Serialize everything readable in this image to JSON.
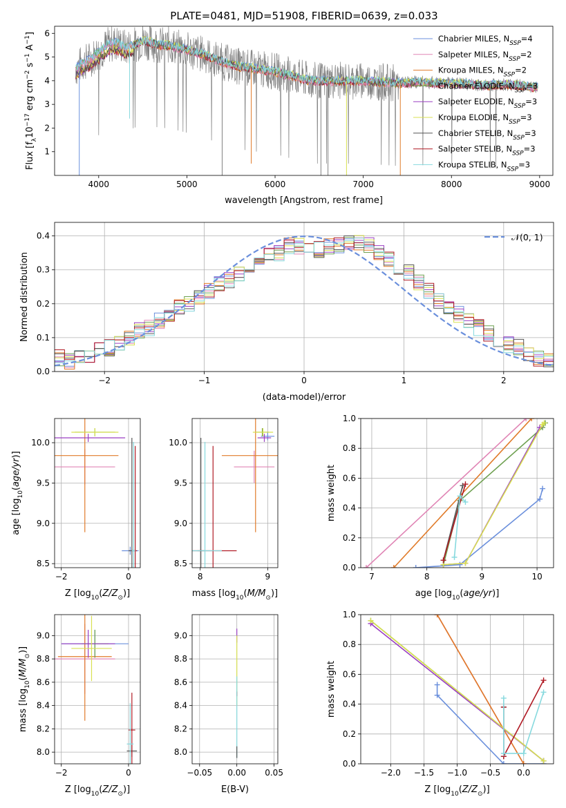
{
  "colors": {
    "c0": "#6a8fdc",
    "c1": "#e085b5",
    "c2": "#e07a28",
    "c3": "#6ea050",
    "c4": "#9a3fc2",
    "c5": "#d8e050",
    "c6": "#555555",
    "c7": "#b01a24",
    "c8": "#86d9de",
    "gray": "#808080",
    "dash": "#6a8fdc"
  },
  "chart_data": [
    {
      "id": "spectrum",
      "type": "line",
      "title": "PLATE=0481, MJD=51908, FIBERID=0639, z=0.033",
      "xlabel": "wavelength [Angstrom, rest frame]",
      "ylabel": "Flux [f_λ10^-17 erg cm^-2 s^-1 A^-1]",
      "xlim": [
        3500,
        9150
      ],
      "ylim": [
        0,
        6.3
      ],
      "xticks": [
        4000,
        5000,
        6000,
        7000,
        8000,
        9000
      ],
      "yticks": [
        1,
        2,
        3,
        4,
        5,
        6
      ],
      "grid": false,
      "legend": "upper-right",
      "series": [
        {
          "name": "Chabrier MILES, N_SSP=4",
          "color": "c0"
        },
        {
          "name": "Salpeter MILES, N_SSP=2",
          "color": "c1"
        },
        {
          "name": "Kroupa MILES, N_SSP=2",
          "color": "c2"
        },
        {
          "name": "Chabrier ELODIE, N_SSP=3",
          "color": "c3"
        },
        {
          "name": "Salpeter ELODIE, N_SSP=3",
          "color": "c4"
        },
        {
          "name": "Kroupa ELODIE, N_SSP=3",
          "color": "c5"
        },
        {
          "name": "Chabrier STELIB, N_SSP=3",
          "color": "c6"
        },
        {
          "name": "Salpeter STELIB, N_SSP=3",
          "color": "c7"
        },
        {
          "name": "Kroupa STELIB, N_SSP=3",
          "color": "c8"
        }
      ],
      "model_continuum": {
        "x": [
          3740,
          3800,
          3900,
          4000,
          4100,
          4200,
          4300,
          4400,
          4500,
          4600,
          4700,
          4800,
          4900,
          5000,
          5200,
          5400,
          5600,
          5800,
          6000,
          6200,
          6400,
          6600,
          6800,
          7000,
          7200,
          7400,
          7600,
          7800,
          8000,
          8200,
          8400,
          8600,
          8800,
          9000
        ],
        "y": [
          4.5,
          4.7,
          4.9,
          5.2,
          5.5,
          5.6,
          5.4,
          5.5,
          5.7,
          5.6,
          5.5,
          5.5,
          5.4,
          5.3,
          5.1,
          4.8,
          4.6,
          4.5,
          4.4,
          4.2,
          4.0,
          4.0,
          4.0,
          4.0,
          3.95,
          3.9,
          3.95,
          3.9,
          3.9,
          3.85,
          3.8,
          3.85,
          3.8,
          3.7
        ]
      }
    },
    {
      "id": "residuals",
      "type": "bar",
      "xlabel": "(data-model)/error",
      "ylabel": "Normed distribution",
      "xlim": [
        -2.5,
        2.5
      ],
      "ylim": [
        0,
        0.44
      ],
      "xticks": [
        -2,
        -1,
        0,
        1,
        2
      ],
      "yticks": [
        0.0,
        0.1,
        0.2,
        0.3,
        0.4
      ],
      "grid": true,
      "legend": "upper-right",
      "normal_label": "𝒩(0, 1)",
      "bin_edges_start": -2.5,
      "bin_width": 0.1,
      "hist_base": [
        0.04,
        0.03,
        0.04,
        0.05,
        0.06,
        0.07,
        0.08,
        0.1,
        0.12,
        0.13,
        0.15,
        0.17,
        0.19,
        0.2,
        0.22,
        0.24,
        0.26,
        0.27,
        0.29,
        0.31,
        0.33,
        0.34,
        0.35,
        0.37,
        0.37,
        0.36,
        0.36,
        0.37,
        0.37,
        0.38,
        0.38,
        0.37,
        0.35,
        0.33,
        0.31,
        0.29,
        0.26,
        0.24,
        0.21,
        0.19,
        0.17,
        0.15,
        0.13,
        0.11,
        0.09,
        0.08,
        0.07,
        0.05,
        0.04,
        0.03
      ]
    },
    {
      "id": "age-vs-Z",
      "type": "scatter",
      "xlabel": "Z [log10(Z/Z⊙)]",
      "ylabel": "age  [log10(age/yr)]",
      "xlim": [
        -2.2,
        0.35
      ],
      "ylim": [
        8.45,
        10.3
      ],
      "xticks": [
        -2,
        0
      ],
      "yticks": [
        8.5,
        9.0,
        9.5,
        10.0
      ],
      "grid": true,
      "points": [
        {
          "c": "c0",
          "x": 0.05,
          "y": 8.66,
          "xe": 0.25,
          "ye": 0.05
        },
        {
          "c": "c1",
          "x": -1.3,
          "y": 9.7,
          "xe": 0.9,
          "ye": 0.22
        },
        {
          "c": "c2",
          "x": -1.3,
          "y": 9.84,
          "xe": 1.0,
          "ye": 0.95
        },
        {
          "c": "c3",
          "x": -1.0,
          "y": 10.13,
          "xe": 0.6,
          "ye": 0.05
        },
        {
          "c": "c4",
          "x": -1.2,
          "y": 10.06,
          "xe": 1.1,
          "ye": 0.05
        },
        {
          "c": "c5",
          "x": -1.0,
          "y": 10.13,
          "xe": 0.7,
          "ye": 0.05
        },
        {
          "c": "c6",
          "x": 0.1,
          "y": 8.66,
          "xe": 0.1,
          "ye": 1.4
        },
        {
          "c": "c7",
          "x": 0.2,
          "y": 8.66,
          "xe": 0.05,
          "ye": 1.3
        },
        {
          "c": "c8",
          "x": 0.15,
          "y": 8.66,
          "xe": 0.05,
          "ye": 1.35
        }
      ]
    },
    {
      "id": "age-vs-mass",
      "type": "scatter",
      "xlabel": "mass [log10(M/M⊙)]",
      "ylabel": "",
      "xlim": [
        7.88,
        9.15
      ],
      "ylim": [
        8.45,
        10.3
      ],
      "xticks": [
        8,
        9
      ],
      "yticks": [
        8.5,
        9.0,
        9.5,
        10.0
      ],
      "grid": true,
      "points": [
        {
          "c": "c0",
          "x": 9.0,
          "y": 10.08,
          "xe": 0.1,
          "ye": 0.05
        },
        {
          "c": "c1",
          "x": 8.8,
          "y": 9.7,
          "xe": 0.3,
          "ye": 0.2
        },
        {
          "c": "c2",
          "x": 8.82,
          "y": 9.84,
          "xe": 0.5,
          "ye": 0.95
        },
        {
          "c": "c3",
          "x": 8.92,
          "y": 10.13,
          "xe": 0.1,
          "ye": 0.05
        },
        {
          "c": "c4",
          "x": 8.95,
          "y": 10.06,
          "xe": 0.1,
          "ye": 0.05
        },
        {
          "c": "c5",
          "x": 8.93,
          "y": 10.13,
          "xe": 0.15,
          "ye": 0.05
        },
        {
          "c": "c6",
          "x": 8.01,
          "y": 8.66,
          "xe": 0.05,
          "ye": 1.4
        },
        {
          "c": "c7",
          "x": 8.19,
          "y": 8.66,
          "xe": 0.35,
          "ye": 1.3
        },
        {
          "c": "c8",
          "x": 8.07,
          "y": 8.66,
          "xe": 0.25,
          "ye": 1.35
        }
      ]
    },
    {
      "id": "weight-vs-age",
      "type": "line",
      "xlabel": "age  [log10(age/yr)]",
      "ylabel": "mass weight",
      "xlim": [
        6.8,
        10.3
      ],
      "ylim": [
        0,
        1.0
      ],
      "xticks": [
        7,
        8,
        9,
        10
      ],
      "yticks": [
        0.0,
        0.2,
        0.4,
        0.6,
        0.8,
        1.0
      ],
      "grid": true,
      "series": [
        {
          "c": "c0",
          "x": [
            7.8,
            8.6,
            10.05,
            10.1
          ],
          "y": [
            0.0,
            0.02,
            0.46,
            0.53
          ]
        },
        {
          "c": "c1",
          "x": [
            6.9,
            9.8
          ],
          "y": [
            0.0,
            1.0
          ]
        },
        {
          "c": "c2",
          "x": [
            7.4,
            9.9
          ],
          "y": [
            0.0,
            1.0
          ]
        },
        {
          "c": "c3",
          "x": [
            8.3,
            8.6,
            10.1,
            10.15
          ],
          "y": [
            0.02,
            0.45,
            0.94,
            0.97
          ]
        },
        {
          "c": "c4",
          "x": [
            8.3,
            8.7,
            10.05
          ],
          "y": [
            0.02,
            0.03,
            0.94
          ]
        },
        {
          "c": "c5",
          "x": [
            8.3,
            8.7,
            10.1,
            10.13
          ],
          "y": [
            0.02,
            0.03,
            0.96,
            0.97
          ]
        },
        {
          "c": "c6",
          "x": [
            8.3,
            8.65
          ],
          "y": [
            0.05,
            0.55
          ]
        },
        {
          "c": "c7",
          "x": [
            8.3,
            8.7
          ],
          "y": [
            0.05,
            0.56
          ]
        },
        {
          "c": "c8",
          "x": [
            8.5,
            8.6,
            8.7
          ],
          "y": [
            0.07,
            0.48,
            0.44
          ]
        }
      ]
    },
    {
      "id": "mass-vs-Z",
      "type": "scatter",
      "xlabel": "Z [log10(Z/Z⊙)]",
      "ylabel": "mass [log10(M/M⊙)]",
      "xlim": [
        -2.2,
        0.35
      ],
      "ylim": [
        7.9,
        9.18
      ],
      "xticks": [
        -2,
        0
      ],
      "yticks": [
        8.0,
        8.2,
        8.4,
        8.6,
        8.8,
        9.0
      ],
      "grid": true,
      "points": [
        {
          "c": "c0",
          "x": -1.0,
          "y": 8.93,
          "xe": 1.0,
          "ye": 0.12
        },
        {
          "c": "c1",
          "x": -1.3,
          "y": 8.8,
          "xe": 0.9,
          "ye": 0.3
        },
        {
          "c": "c2",
          "x": -1.3,
          "y": 8.82,
          "xe": 0.8,
          "ye": 0.55
        },
        {
          "c": "c3",
          "x": -1.0,
          "y": 8.93,
          "xe": 0.4,
          "ye": 0.12
        },
        {
          "c": "c4",
          "x": -1.2,
          "y": 8.93,
          "xe": 0.8,
          "ye": 0.12
        },
        {
          "c": "c5",
          "x": -1.1,
          "y": 8.89,
          "xe": 0.6,
          "ye": 0.28
        },
        {
          "c": "c6",
          "x": 0.1,
          "y": 8.01,
          "xe": 0.15,
          "ye": 0.05
        },
        {
          "c": "c7",
          "x": 0.1,
          "y": 8.19,
          "xe": 0.1,
          "ye": 0.32
        },
        {
          "c": "c8",
          "x": 0.05,
          "y": 8.07,
          "xe": 0.1,
          "ye": 0.35
        }
      ]
    },
    {
      "id": "mass-vs-ebv",
      "type": "scatter",
      "xlabel": "E(B-V)",
      "ylabel": "",
      "xlim": [
        -0.06,
        0.055
      ],
      "ylim": [
        7.9,
        9.18
      ],
      "xticks": [
        -0.05,
        0.0,
        0.05
      ],
      "xticklabels": [
        "−0.05",
        "0.00",
        "0.05"
      ],
      "yticks": [
        8.0,
        8.2,
        8.4,
        8.6,
        8.8,
        9.0
      ],
      "grid": true,
      "points": [
        {
          "c": "c4",
          "x": 0.0,
          "y": 9.0,
          "xe": 0.0,
          "ye": 0.06
        },
        {
          "c": "c5",
          "x": 0.0,
          "y": 8.7,
          "xe": 0.0,
          "ye": 0.3
        },
        {
          "c": "c7",
          "x": 0.0,
          "y": 8.5,
          "xe": 0.0,
          "ye": 0.02
        },
        {
          "c": "c8",
          "x": 0.0,
          "y": 8.3,
          "xe": 0.0,
          "ye": 0.35
        },
        {
          "c": "c6",
          "x": 0.0,
          "y": 8.0,
          "xe": 0.0,
          "ye": 0.05
        }
      ]
    },
    {
      "id": "weight-vs-Z",
      "type": "line",
      "xlabel": "Z [log10(Z/Z⊙)]",
      "ylabel": "mass weight",
      "xlim": [
        -2.45,
        0.45
      ],
      "ylim": [
        0,
        1.0
      ],
      "xticks": [
        -2.0,
        -1.5,
        -1.0,
        -0.5,
        0.0
      ],
      "xticklabels": [
        "−2.0",
        "−1.5",
        "−1.0",
        "−0.5",
        "0.0"
      ],
      "yticks": [
        0.0,
        0.2,
        0.4,
        0.6,
        0.8,
        1.0
      ],
      "grid": true,
      "series": [
        {
          "c": "c0",
          "x": [
            -1.3,
            -1.3,
            -0.3,
            0.3
          ],
          "y": [
            0.53,
            0.46,
            0.0,
            0.0
          ]
        },
        {
          "c": "c1",
          "x": [
            -1.3,
            0.0
          ],
          "y": [
            1.0,
            0.0
          ]
        },
        {
          "c": "c2",
          "x": [
            -1.3,
            0.0
          ],
          "y": [
            1.0,
            0.0
          ]
        },
        {
          "c": "c3",
          "x": [
            -2.3,
            0.3,
            0.3
          ],
          "y": [
            0.96,
            0.02,
            0.02
          ]
        },
        {
          "c": "c4",
          "x": [
            -2.3,
            0.3
          ],
          "y": [
            0.94,
            0.02
          ]
        },
        {
          "c": "c5",
          "x": [
            -2.3,
            0.3
          ],
          "y": [
            0.96,
            0.02
          ]
        },
        {
          "c": "c6",
          "x": [
            -0.3,
            -0.3
          ],
          "y": [
            0.05,
            0.38
          ]
        },
        {
          "c": "c7",
          "x": [
            -0.3,
            -0.3,
            0.3
          ],
          "y": [
            0.38,
            0.05,
            0.56
          ]
        },
        {
          "c": "c8",
          "x": [
            -0.3,
            -0.3,
            0.0,
            0.3
          ],
          "y": [
            0.44,
            0.07,
            0.07,
            0.48
          ]
        }
      ]
    }
  ]
}
